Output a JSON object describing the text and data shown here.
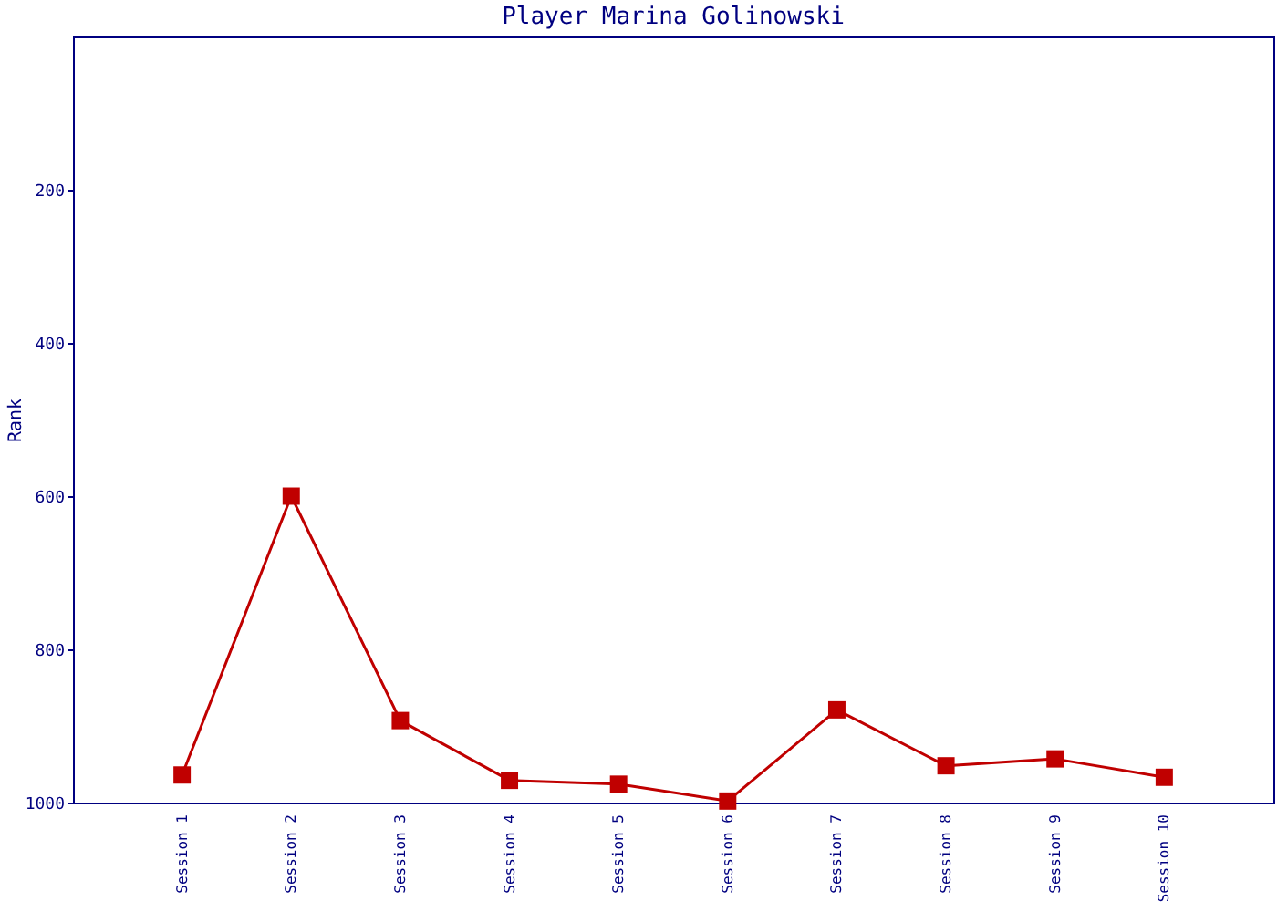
{
  "chart_data": {
    "type": "line",
    "title": "Player Marina Golinowski",
    "ylabel": "Rank",
    "categories": [
      "Session 1",
      "Session 2",
      "Session 3",
      "Session 4",
      "Session 5",
      "Session 6",
      "Session 7",
      "Session 8",
      "Session 9",
      "Session 10"
    ],
    "series": [
      {
        "color": "#c00000",
        "values": [
          964,
          600,
          893,
          971,
          976,
          998,
          879,
          952,
          943,
          967
        ]
      }
    ],
    "ylim": [
      1000,
      0
    ],
    "yticks": [
      200,
      400,
      600,
      800,
      1000
    ],
    "grid": false,
    "legend": false,
    "marker": "square",
    "line_style": "solid"
  }
}
